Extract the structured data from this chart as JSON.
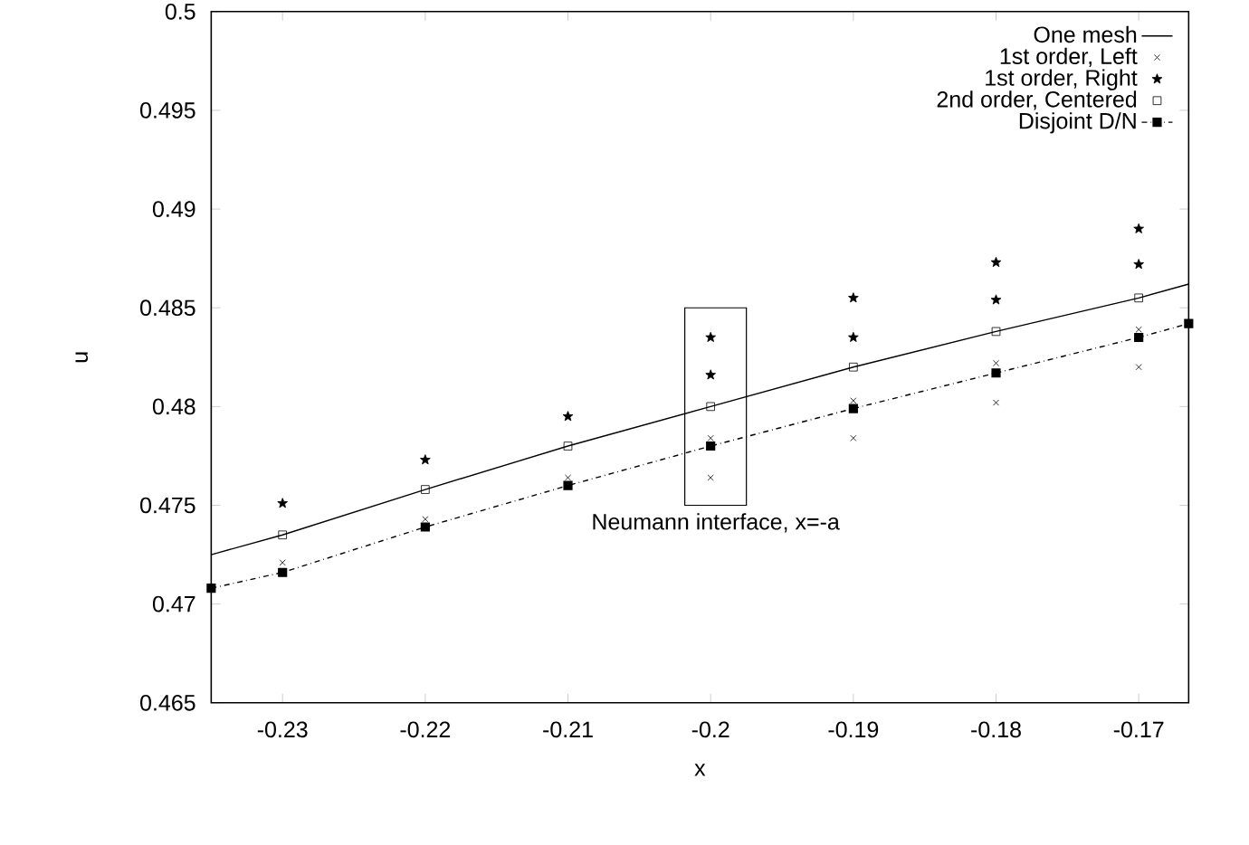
{
  "chart_data": {
    "type": "scatter",
    "xlabel": "x",
    "ylabel": "u",
    "xlim": [
      -0.235,
      -0.1665
    ],
    "ylim": [
      0.465,
      0.5
    ],
    "xticks": [
      -0.23,
      -0.22,
      -0.21,
      -0.2,
      -0.19,
      -0.18,
      -0.17
    ],
    "yticks": [
      0.465,
      0.47,
      0.475,
      0.48,
      0.485,
      0.49,
      0.495,
      0.5
    ],
    "grid": false,
    "legend": "top right",
    "annotations": [
      "Neumann interface, x=-a"
    ],
    "series": [
      {
        "name": "One mesh",
        "type": "line",
        "color": "#000000",
        "line_style": "solid",
        "x": [
          -0.235,
          -0.23,
          -0.22,
          -0.21,
          -0.2,
          -0.19,
          -0.18,
          -0.17,
          -0.1665
        ],
        "values": [
          0.4725,
          0.4735,
          0.4758,
          0.478,
          0.48,
          0.482,
          0.4838,
          0.4855,
          0.4862
        ]
      },
      {
        "name": "1st order, Left",
        "color": "#000000",
        "marker": "cross",
        "x": [
          -0.23,
          -0.22,
          -0.21,
          -0.2,
          -0.2,
          -0.19,
          -0.19,
          -0.18,
          -0.18,
          -0.17,
          -0.17
        ],
        "values": [
          0.4721,
          0.4743,
          0.4764,
          0.4784,
          0.4764,
          0.4803,
          0.4784,
          0.4822,
          0.4802,
          0.4839,
          0.482
        ]
      },
      {
        "name": "1st order, Right",
        "color": "#000000",
        "marker": "star",
        "x": [
          -0.23,
          -0.22,
          -0.21,
          -0.2,
          -0.2,
          -0.19,
          -0.19,
          -0.18,
          -0.18,
          -0.17,
          -0.17
        ],
        "values": [
          0.4751,
          0.4773,
          0.4795,
          0.4835,
          0.4816,
          0.4855,
          0.4835,
          0.4873,
          0.4854,
          0.489,
          0.4872
        ]
      },
      {
        "name": "2nd order, Centered",
        "color": "#000000",
        "marker": "square",
        "x": [
          -0.23,
          -0.22,
          -0.21,
          -0.2,
          -0.19,
          -0.18,
          -0.17
        ],
        "values": [
          0.4735,
          0.4758,
          0.478,
          0.48,
          0.482,
          0.4838,
          0.4855
        ]
      },
      {
        "name": "Disjoint D/N",
        "type": "line",
        "color": "#000000",
        "marker": "square",
        "line_style": "dashdot",
        "x": [
          -0.235,
          -0.23,
          -0.22,
          -0.21,
          -0.2,
          -0.19,
          -0.18,
          -0.17,
          -0.1665
        ],
        "values": [
          0.4708,
          0.4716,
          0.4739,
          0.476,
          0.478,
          0.4799,
          0.4817,
          0.4835,
          0.4842
        ]
      }
    ]
  }
}
